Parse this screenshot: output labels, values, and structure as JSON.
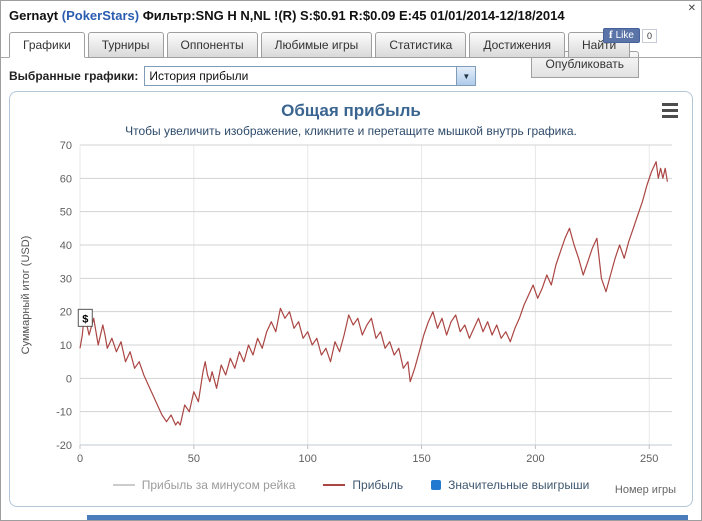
{
  "header": {
    "player": "Gernayt",
    "site": "(PokerStars)",
    "filter": "Фильтр:SNG H N,NL !(R) S:$0.91 R:$0.09 E:45 01/01/2014-12/18/2014",
    "close_label": "✕"
  },
  "facebook": {
    "like_label": "Like",
    "count": "0"
  },
  "tabs": [
    {
      "label": "Графики",
      "active": true
    },
    {
      "label": "Турниры",
      "active": false
    },
    {
      "label": "Оппоненты",
      "active": false
    },
    {
      "label": "Любимые игры",
      "active": false
    },
    {
      "label": "Статистика",
      "active": false
    },
    {
      "label": "Достижения",
      "active": false
    },
    {
      "label": "Найти",
      "active": false
    }
  ],
  "publish_button": {
    "label": "Опубликовать"
  },
  "graph_selector": {
    "label": "Выбранные графики:",
    "selected": "История прибыли"
  },
  "chart_data": {
    "type": "line",
    "title": "Общая прибыль",
    "subtitle": "Чтобы увеличить изображение, кликните и перетащите мышкой внутрь графика.",
    "ylabel": "Суммарный итог (USD)",
    "xlabel": "Номер игры",
    "xlim": [
      0,
      260
    ],
    "ylim": [
      -20,
      70
    ],
    "xticks": [
      0,
      50,
      100,
      150,
      200,
      250
    ],
    "yticks": [
      70,
      60,
      50,
      40,
      30,
      20,
      10,
      0,
      -10,
      -20
    ],
    "grid": true,
    "legend_position": "bottom",
    "legend": [
      {
        "label": "Прибыль за минусом рейка",
        "color": "#CCCCCC",
        "marker": "line",
        "enabled": false
      },
      {
        "label": "Прибыль",
        "color": "#AA4643",
        "marker": "line",
        "enabled": true
      },
      {
        "label": "Значительные выигрыши",
        "color": "#2179D0",
        "marker": "square",
        "enabled": true
      }
    ],
    "annotation": {
      "label": "$",
      "x": 1,
      "y": 18
    },
    "series": [
      {
        "name": "Прибыль",
        "color": "#AA4643",
        "points": [
          [
            0,
            9
          ],
          [
            1,
            13
          ],
          [
            2,
            20
          ],
          [
            3,
            16
          ],
          [
            4,
            13
          ],
          [
            6,
            18
          ],
          [
            8,
            10
          ],
          [
            10,
            16
          ],
          [
            11,
            13
          ],
          [
            12,
            9
          ],
          [
            14,
            12
          ],
          [
            16,
            8
          ],
          [
            18,
            11
          ],
          [
            20,
            5
          ],
          [
            22,
            8
          ],
          [
            24,
            3
          ],
          [
            26,
            5
          ],
          [
            28,
            1
          ],
          [
            30,
            -2
          ],
          [
            32,
            -5
          ],
          [
            34,
            -8
          ],
          [
            36,
            -11
          ],
          [
            38,
            -13
          ],
          [
            40,
            -11
          ],
          [
            42,
            -14
          ],
          [
            43,
            -13
          ],
          [
            44,
            -14
          ],
          [
            46,
            -8
          ],
          [
            48,
            -10
          ],
          [
            50,
            -4
          ],
          [
            52,
            -7
          ],
          [
            54,
            2
          ],
          [
            55,
            5
          ],
          [
            56,
            1
          ],
          [
            57,
            -1
          ],
          [
            58,
            2
          ],
          [
            60,
            -3
          ],
          [
            62,
            4
          ],
          [
            64,
            1
          ],
          [
            66,
            6
          ],
          [
            68,
            3
          ],
          [
            70,
            8
          ],
          [
            72,
            5
          ],
          [
            74,
            10
          ],
          [
            76,
            7
          ],
          [
            78,
            12
          ],
          [
            80,
            9
          ],
          [
            82,
            14
          ],
          [
            84,
            17
          ],
          [
            86,
            14
          ],
          [
            88,
            21
          ],
          [
            90,
            18
          ],
          [
            92,
            20
          ],
          [
            94,
            15
          ],
          [
            96,
            17
          ],
          [
            98,
            12
          ],
          [
            100,
            14
          ],
          [
            102,
            10
          ],
          [
            104,
            12
          ],
          [
            106,
            7
          ],
          [
            108,
            9
          ],
          [
            110,
            5
          ],
          [
            112,
            11
          ],
          [
            114,
            8
          ],
          [
            116,
            13
          ],
          [
            118,
            19
          ],
          [
            120,
            16
          ],
          [
            122,
            18
          ],
          [
            124,
            13
          ],
          [
            126,
            16
          ],
          [
            128,
            18
          ],
          [
            130,
            12
          ],
          [
            132,
            14
          ],
          [
            134,
            9
          ],
          [
            136,
            11
          ],
          [
            138,
            7
          ],
          [
            140,
            9
          ],
          [
            142,
            3
          ],
          [
            144,
            5
          ],
          [
            145,
            -1
          ],
          [
            147,
            3
          ],
          [
            149,
            8
          ],
          [
            151,
            13
          ],
          [
            153,
            17
          ],
          [
            155,
            20
          ],
          [
            157,
            15
          ],
          [
            159,
            18
          ],
          [
            161,
            13
          ],
          [
            163,
            17
          ],
          [
            165,
            19
          ],
          [
            167,
            14
          ],
          [
            169,
            16
          ],
          [
            171,
            12
          ],
          [
            173,
            15
          ],
          [
            175,
            18
          ],
          [
            177,
            14
          ],
          [
            179,
            17
          ],
          [
            181,
            13
          ],
          [
            183,
            16
          ],
          [
            185,
            12
          ],
          [
            187,
            14
          ],
          [
            189,
            11
          ],
          [
            191,
            15
          ],
          [
            193,
            18
          ],
          [
            195,
            22
          ],
          [
            197,
            25
          ],
          [
            199,
            28
          ],
          [
            201,
            24
          ],
          [
            203,
            27
          ],
          [
            205,
            31
          ],
          [
            207,
            28
          ],
          [
            209,
            34
          ],
          [
            211,
            38
          ],
          [
            213,
            42
          ],
          [
            215,
            45
          ],
          [
            217,
            40
          ],
          [
            219,
            36
          ],
          [
            221,
            31
          ],
          [
            223,
            35
          ],
          [
            225,
            39
          ],
          [
            227,
            42
          ],
          [
            229,
            30
          ],
          [
            231,
            26
          ],
          [
            233,
            31
          ],
          [
            235,
            36
          ],
          [
            237,
            40
          ],
          [
            239,
            36
          ],
          [
            241,
            41
          ],
          [
            243,
            45
          ],
          [
            245,
            49
          ],
          [
            247,
            53
          ],
          [
            249,
            58
          ],
          [
            251,
            62
          ],
          [
            253,
            65
          ],
          [
            254,
            60
          ],
          [
            255,
            63
          ],
          [
            256,
            60
          ],
          [
            257,
            63
          ],
          [
            258,
            59
          ]
        ]
      }
    ]
  }
}
